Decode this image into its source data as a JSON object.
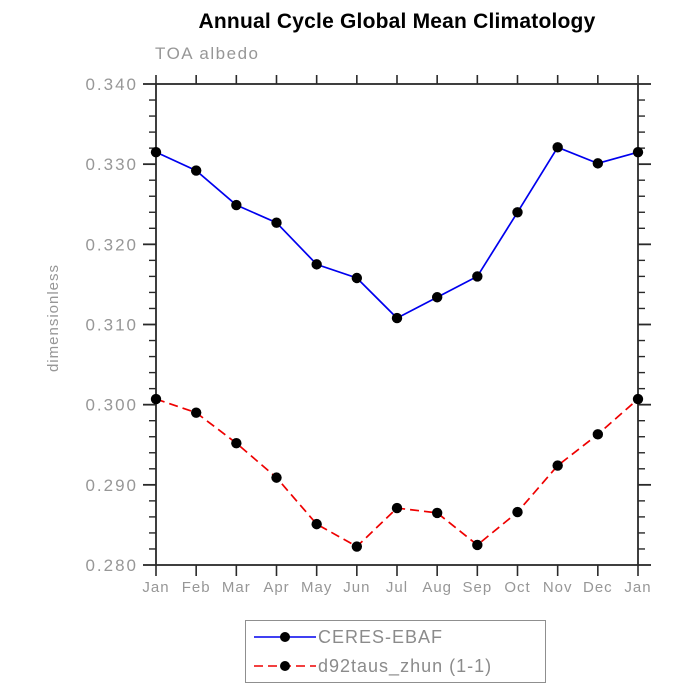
{
  "header": {
    "title": "Annual Cycle Global Mean Climatology",
    "subtitle": "TOA albedo"
  },
  "colors": {
    "series1": "#0000ee",
    "series2": "#ee0000",
    "marker": "#000000",
    "axis": "#2a2a2a",
    "axis_text": "#979797",
    "legend_text": "#8b8b8b",
    "title_text": "#000000",
    "background": "#ffffff"
  },
  "chart_data": {
    "type": "line",
    "title": "Annual Cycle Global Mean Climatology",
    "subtitle": "TOA albedo",
    "xlabel": "",
    "ylabel": "dimensionless",
    "categories": [
      "Jan",
      "Feb",
      "Mar",
      "Apr",
      "May",
      "Jun",
      "Jul",
      "Aug",
      "Sep",
      "Oct",
      "Nov",
      "Dec",
      "Jan"
    ],
    "series": [
      {
        "name": "CERES-EBAF",
        "color": "#0000ee",
        "line_style": "solid",
        "marker": "filled-circle",
        "marker_color": "#000000",
        "values": [
          0.3315,
          0.3292,
          0.3249,
          0.3227,
          0.3175,
          0.3158,
          0.3108,
          0.3134,
          0.316,
          0.324,
          0.3321,
          0.3301,
          0.3315
        ]
      },
      {
        "name": "d92taus_zhun (1-1)",
        "color": "#ee0000",
        "line_style": "dashed",
        "marker": "filled-circle",
        "marker_color": "#000000",
        "values": [
          0.3007,
          0.299,
          0.2952,
          0.2909,
          0.2851,
          0.2823,
          0.2871,
          0.2865,
          0.2825,
          0.2866,
          0.2924,
          0.2963,
          0.3007
        ]
      }
    ],
    "ylim": [
      0.28,
      0.34
    ],
    "ytick_step": 0.01,
    "yminor_step": 0.002,
    "ytick_labels": [
      "0.280",
      "0.290",
      "0.300",
      "0.310",
      "0.320",
      "0.330",
      "0.340"
    ],
    "grid": false,
    "frame": "box-with-outward-ticks",
    "legend_position": "bottom-center"
  },
  "legend": {
    "items": [
      {
        "label": "CERES-EBAF"
      },
      {
        "label": "d92taus_zhun (1-1)"
      }
    ]
  }
}
